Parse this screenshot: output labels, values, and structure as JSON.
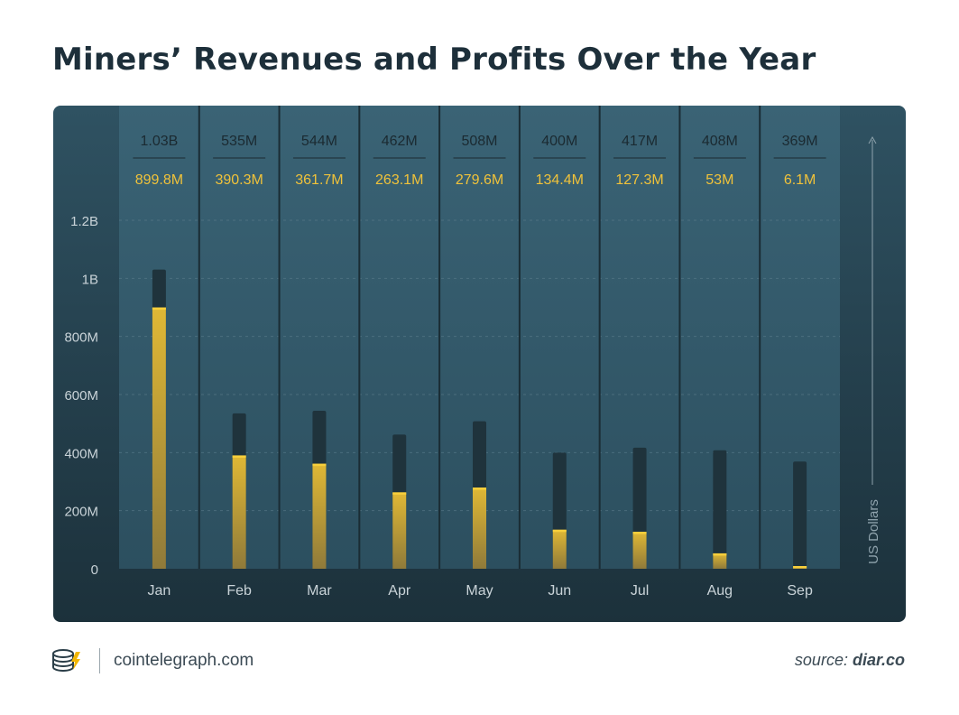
{
  "title": "Miners’ Revenues and Profits Over the Year",
  "footer": {
    "site": "cointelegraph.com",
    "source_label": "source:",
    "source_name": "diar.co"
  },
  "colors": {
    "panel": "#2a4a59",
    "revenue_bar": "#1f333c",
    "profit_bar": "#d4ae2f",
    "profit_label": "#f0c23a",
    "revenue_label": "#1b2a31",
    "axis_text": "#c9d3d8"
  },
  "chart_data": {
    "type": "bar",
    "categories": [
      "Jan",
      "Feb",
      "Mar",
      "Apr",
      "May",
      "Jun",
      "Jul",
      "Aug",
      "Sep"
    ],
    "series": [
      {
        "values": [
          1030,
          535,
          544,
          462,
          508,
          400,
          417,
          408,
          369
        ],
        "labels": [
          "1.03B",
          "535M",
          "544M",
          "462M",
          "508M",
          "400M",
          "417M",
          "408M",
          "369M"
        ]
      },
      {
        "values": [
          899.8,
          390.3,
          361.7,
          263.1,
          279.6,
          134.4,
          127.3,
          53,
          6.1
        ],
        "labels": [
          "899.8M",
          "390.3M",
          "361.7M",
          "263.1M",
          "279.6M",
          "134.4M",
          "127.3M",
          "53M",
          "6.1M"
        ]
      }
    ],
    "ylabel": "US Dollars",
    "yticks": [
      0,
      200,
      400,
      600,
      800,
      1000,
      1200
    ],
    "ytick_labels": [
      "0",
      "200M",
      "400M",
      "600M",
      "800M",
      "1B",
      "1.2B"
    ],
    "ylim": [
      0,
      1200
    ],
    "grid": true
  }
}
